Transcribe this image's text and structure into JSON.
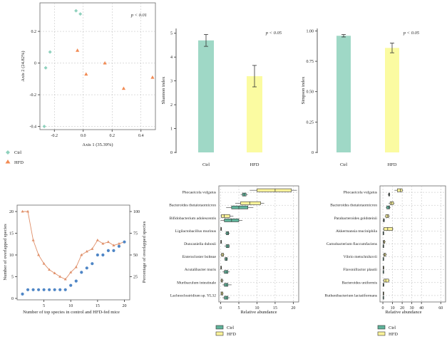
{
  "colors": {
    "ctrl": "#8fd1bd",
    "hfd": "#f28b54",
    "bar_ctrl": "#9fd8c6",
    "bar_hfd": "#fbfba1",
    "dots": "#4f86c6",
    "curve": "#e0906a",
    "box_ctrl": "#5fb39a",
    "box_hfd": "#fbf39a"
  },
  "chart_data": [
    {
      "type": "scatter",
      "id": "pcoa",
      "xlabel": "Axis 1 (35.39%)",
      "ylabel": "Axis 2 (24.82%)",
      "xlim": [
        -0.3,
        0.5
      ],
      "ylim": [
        -0.42,
        0.38
      ],
      "xticks": [
        -0.2,
        0.0,
        0.2,
        0.4
      ],
      "xtick_labels": [
        "-0.2",
        "0.0",
        "0.2",
        "0.4"
      ],
      "yticks": [
        -0.4,
        -0.2,
        0.0,
        0.2
      ],
      "ytick_labels": [
        "-0.4",
        "-0.2",
        "0",
        "0.2"
      ],
      "annotation": "p < 0.01",
      "series": [
        {
          "name": "Ctrl",
          "marker": "diamond",
          "x": [
            -0.27,
            -0.26,
            -0.23,
            -0.05,
            -0.02
          ],
          "y": [
            -0.4,
            -0.03,
            0.07,
            0.33,
            0.31
          ]
        },
        {
          "name": "HFD",
          "marker": "triangle",
          "x": [
            -0.04,
            0.02,
            0.15,
            0.28,
            0.48
          ],
          "y": [
            0.08,
            -0.07,
            0.0,
            -0.16,
            -0.09
          ]
        }
      ]
    },
    {
      "type": "bar",
      "id": "shannon",
      "ylabel": "Shannon index",
      "annotation": "p < 0.05",
      "categories": [
        "Ctrl",
        "HFD"
      ],
      "values": [
        4.7,
        3.2
      ],
      "errors": [
        0.25,
        0.45
      ],
      "ylim": [
        0,
        5.2
      ],
      "yticks": [
        0,
        1,
        2,
        3,
        4,
        5
      ],
      "ytick_labels": [
        "0",
        "1",
        "2",
        "3",
        "4",
        "5"
      ]
    },
    {
      "type": "bar",
      "id": "simpson",
      "ylabel": "Simpson index",
      "annotation": "p < 0.05",
      "categories": [
        "Ctrl",
        "HFD"
      ],
      "values": [
        0.96,
        0.86
      ],
      "errors": [
        0.01,
        0.04
      ],
      "ylim": [
        0,
        1.02
      ],
      "yticks": [
        0,
        0.25,
        0.5,
        0.75,
        1.0
      ],
      "ytick_labels": [
        "0",
        "0.25",
        "0.50",
        "0.75",
        "1.00"
      ]
    },
    {
      "type": "line",
      "id": "overlap",
      "xlabel": "Number of top species in control and HFD-fed mice",
      "ylabel_left": "Number of overlapped species",
      "ylabel_right": "Percentage of overlapped species",
      "x": [
        1,
        2,
        3,
        4,
        5,
        6,
        7,
        8,
        9,
        10,
        11,
        12,
        13,
        14,
        15,
        16,
        17,
        18,
        19,
        20
      ],
      "count": [
        1,
        2,
        2,
        2,
        2,
        2,
        2,
        2,
        2,
        3,
        4,
        6,
        7,
        8,
        10,
        10,
        11,
        11,
        12,
        13
      ],
      "percent": [
        100,
        100,
        67,
        50,
        40,
        33,
        29,
        25,
        22,
        30,
        36,
        50,
        54,
        57,
        67,
        63,
        65,
        61,
        63,
        65
      ],
      "xlim": [
        0,
        21
      ],
      "ylim_left": [
        0,
        20
      ],
      "ylim_right": [
        0,
        100
      ],
      "xticks": [
        5,
        10,
        15,
        20
      ],
      "xtick_labels": [
        "5",
        "10",
        "15",
        "20"
      ],
      "yticks_left": [
        0,
        5,
        10,
        15,
        20
      ],
      "ytick_left_labels": [
        "0",
        "5",
        "10",
        "15",
        "20"
      ],
      "yticks_right": [
        25,
        50,
        75,
        100
      ],
      "ytick_right_labels": [
        "25",
        "50",
        "75",
        "100"
      ]
    },
    {
      "type": "boxplot",
      "id": "ctrl_top",
      "xlabel": "Relative abundance",
      "xlim": [
        -0.5,
        21.5
      ],
      "xticks": [
        0,
        5,
        10,
        15,
        20
      ],
      "xtick_labels": [
        "0",
        "5",
        "10",
        "15",
        "20"
      ],
      "species": [
        "Phocaeicola vulgatus",
        "Bacteroides thetaiotaomicron",
        "Bifidobacterium adolescentis",
        "Ligilactobacillus murinus",
        "Duncaniella dubosii",
        "Enterocloster bolteae",
        "Acutalibacter muris",
        "Muribaculum intestinale",
        "Lachnoclostridium sp. YL32"
      ],
      "ctrl": [
        [
          5.5,
          6,
          6.5,
          7,
          7.5
        ],
        [
          1.5,
          3,
          5,
          7.5,
          9
        ],
        [
          0,
          1,
          3,
          5,
          6
        ],
        [
          1.2,
          1.5,
          2,
          2.2,
          2.5
        ],
        [
          1,
          1.5,
          2,
          2.3,
          2.5
        ],
        [
          1,
          1.2,
          1.5,
          1.8,
          2
        ],
        [
          0.5,
          1,
          1.5,
          2,
          2.5
        ],
        [
          0.5,
          1,
          1.5,
          2,
          3
        ],
        [
          0.5,
          1,
          1.5,
          2,
          2.5
        ]
      ],
      "hfd": [
        [
          8,
          10,
          15,
          19.5,
          21
        ],
        [
          4,
          5.5,
          8,
          11,
          12
        ],
        [
          0,
          0.2,
          1,
          2.5,
          3.5
        ],
        [
          0,
          0,
          0.1,
          0.2,
          0.3
        ],
        [
          0,
          0,
          0.1,
          0.2,
          0.3
        ],
        [
          0,
          0.2,
          0.5,
          0.8,
          1
        ],
        [
          0,
          0,
          0.1,
          0.2,
          0.3
        ],
        [
          0,
          0.1,
          0.3,
          0.5,
          0.8
        ],
        [
          0,
          0.1,
          0.3,
          0.6,
          0.8
        ]
      ]
    },
    {
      "type": "boxplot",
      "id": "hfd_top",
      "xlabel": "Relative abundance",
      "xlim": [
        -3,
        65
      ],
      "xticks": [
        0,
        10,
        20,
        30,
        40,
        60
      ],
      "xtick_labels": [
        "0",
        "10",
        "20",
        "30",
        "40",
        "60"
      ],
      "species": [
        "Phocaeicola vulgatus",
        "Bacteroides thetaiotaomicron",
        "Parabacteroides goldsteinii",
        "Akkermansia muciniphila",
        "Carnobacterium flaccumfaciens",
        "Vibrio metschnikovii",
        "Flavonifractor plautii",
        "Bacteroides uniformis",
        "Ruthenibacterium lactatiformans"
      ],
      "ctrl": [
        [
          5,
          6,
          6.5,
          7,
          7.5
        ],
        [
          3,
          4,
          6,
          7,
          8
        ],
        [
          0,
          0.5,
          1,
          1.5,
          2
        ],
        [
          0,
          0.1,
          0.3,
          0.5,
          0.8
        ],
        [
          0,
          0.1,
          0.3,
          0.5,
          1
        ],
        [
          0,
          0.1,
          0.2,
          0.4,
          0.6
        ],
        [
          0,
          0.1,
          0.2,
          0.3,
          0.5
        ],
        [
          0,
          0.2,
          0.5,
          1,
          1.5
        ],
        [
          0,
          0.1,
          0.2,
          0.4,
          0.6
        ]
      ],
      "hfd": [
        [
          12,
          15,
          18,
          20,
          21
        ],
        [
          6,
          7.5,
          9,
          11,
          12
        ],
        [
          2,
          3,
          5,
          6,
          7
        ],
        [
          0,
          1,
          5,
          10,
          11
        ],
        [
          0,
          0.5,
          1,
          2,
          3
        ],
        [
          0,
          1,
          2,
          3,
          4
        ],
        [
          0,
          0.2,
          0.5,
          1,
          1.5
        ],
        [
          0,
          1,
          3,
          6,
          7
        ],
        [
          0,
          0.2,
          0.4,
          0.8,
          1
        ]
      ]
    }
  ],
  "legends": {
    "pcoa": [
      {
        "label": "Ctrl"
      },
      {
        "label": "HFD"
      }
    ],
    "box_left": [
      {
        "label": "Ctrl"
      },
      {
        "label": "HFD"
      }
    ],
    "box_right": [
      {
        "label": "Ctrl"
      },
      {
        "label": "HFD"
      }
    ]
  }
}
